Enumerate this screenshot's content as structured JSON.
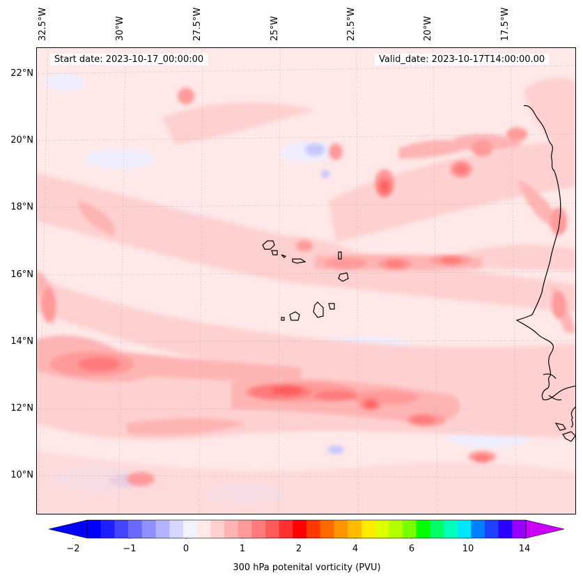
{
  "map": {
    "start_date_text": "Start date: 2023-10-17_00:00:00",
    "valid_date_text": "Valid_date: 2023-10-17T14:00:00.00",
    "lon_labels": [
      "32.5°W",
      "30°W",
      "27.5°W",
      "25°W",
      "22.5°W",
      "20°W",
      "17.5°W"
    ],
    "lat_labels": [
      "22°N",
      "20°N",
      "18°N",
      "16°N",
      "14°N",
      "12°N",
      "10°N"
    ],
    "field_colors": {
      "background": "#ffe8e8",
      "light_pink": "#ffd0d0",
      "pink": "#ffb4b4",
      "salmon": "#ff9a9a",
      "red_light": "#ff7a7a",
      "red": "#ff5a5a",
      "negative_light": "#eeeeff",
      "negative": "#c8c8ff"
    },
    "coastline_color": "#000000"
  },
  "colorbar": {
    "title": "300 hPa potenital vorticity (PVU)",
    "tick_labels": [
      "−2",
      "−1",
      "0",
      "1",
      "2",
      "4",
      "6",
      "10",
      "14"
    ],
    "colors": [
      "#0000ff",
      "#2020ff",
      "#4545ff",
      "#6a6aff",
      "#8f8fff",
      "#b3b3ff",
      "#d6d6ff",
      "#f2f2ff",
      "#ffe8e8",
      "#ffd0d0",
      "#ffb4b4",
      "#ff9a9a",
      "#ff7a7a",
      "#ff5a5a",
      "#ff3030",
      "#ff0000",
      "#ff3800",
      "#ff6a00",
      "#ff9400",
      "#ffbb00",
      "#ffea00",
      "#dfff00",
      "#b2ff00",
      "#7aff00",
      "#00ff00",
      "#00ff66",
      "#00ffbb",
      "#00e5ff",
      "#0080ff",
      "#2040ff",
      "#2a00ff",
      "#9900ff"
    ],
    "extend_low_color": "#0000ff",
    "extend_high_color": "#cc00ff"
  }
}
